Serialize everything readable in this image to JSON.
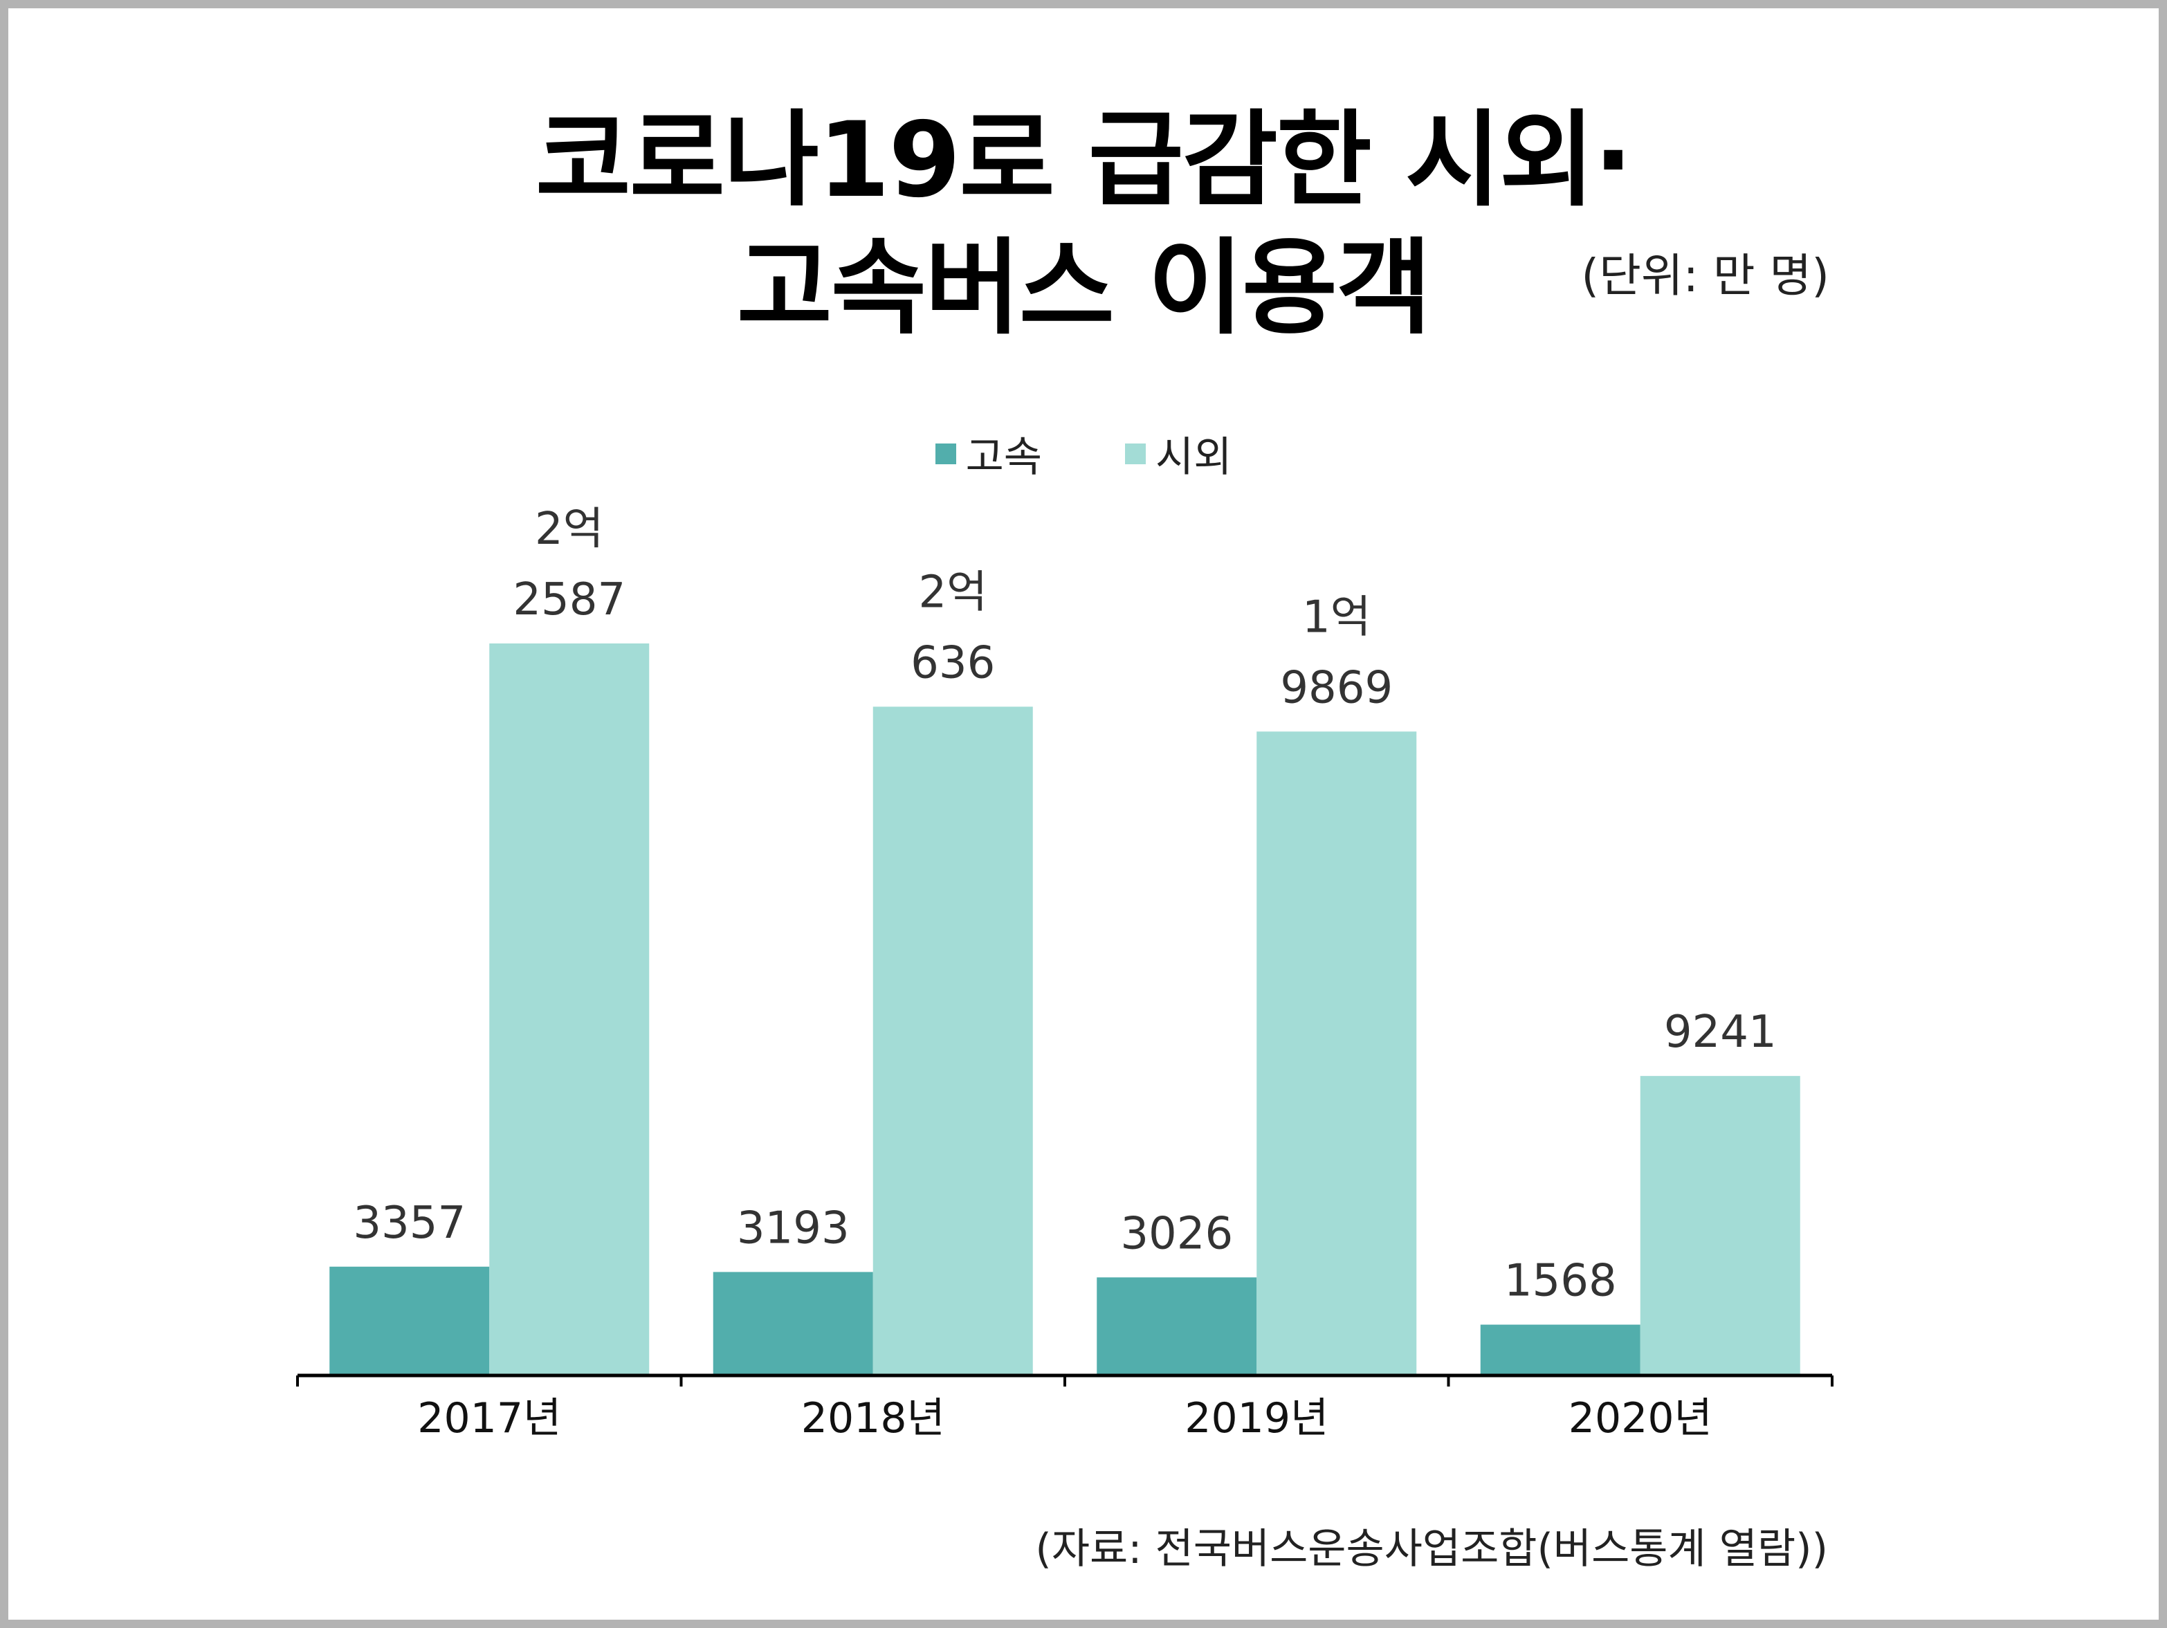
{
  "chart_data": {
    "type": "bar",
    "title_lines": [
      "코로나19로 급감한 시외·",
      "고속버스 이용객"
    ],
    "unit": "(단위: 만 명)",
    "source": "(자료: 전국버스운송사업조합(버스통계 열람))",
    "categories": [
      "2017년",
      "2018년",
      "2019년",
      "2020년"
    ],
    "series": [
      {
        "name": "고속",
        "color": "#52aeac",
        "values": [
          3357,
          3193,
          3026,
          1568
        ],
        "labels": [
          [
            "3357"
          ],
          [
            "3193"
          ],
          [
            "3026"
          ],
          [
            "1568"
          ]
        ]
      },
      {
        "name": "시외",
        "color": "#a3dcd6",
        "values": [
          22587,
          20636,
          19869,
          9241
        ],
        "labels": [
          [
            "2억",
            "2587"
          ],
          [
            "2억",
            "636"
          ],
          [
            "1억",
            "9869"
          ],
          [
            "9241"
          ]
        ]
      }
    ],
    "ylim": [
      0,
      22587
    ],
    "grid": false,
    "legend_position": "top-center"
  }
}
